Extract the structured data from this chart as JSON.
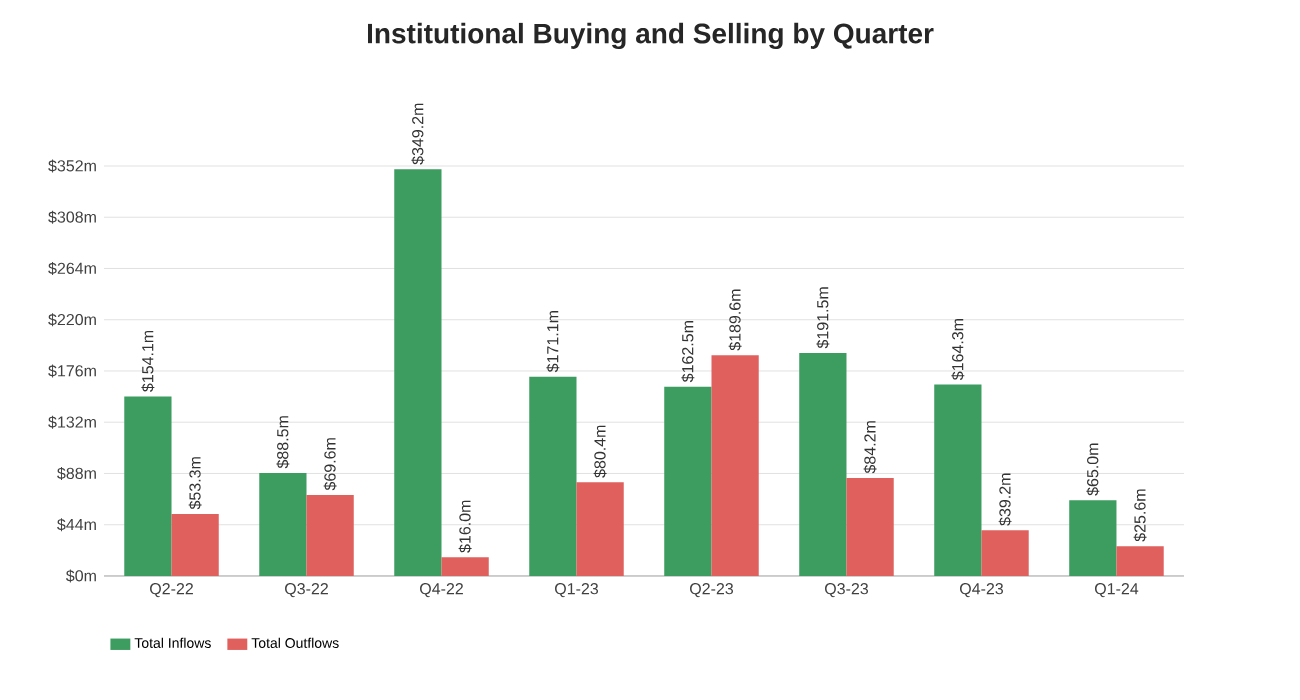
{
  "chart_data": {
    "type": "bar",
    "title": "Institutional Buying and Selling by Quarter",
    "categories": [
      "Q2-22",
      "Q3-22",
      "Q4-22",
      "Q1-23",
      "Q2-23",
      "Q3-23",
      "Q4-23",
      "Q1-24"
    ],
    "series": [
      {
        "name": "Total Inflows",
        "color": "#3d9c5f",
        "values": [
          154.1,
          88.5,
          349.2,
          171.1,
          162.5,
          191.5,
          164.3,
          65.0
        ],
        "value_labels": [
          "$154.1m",
          "$88.5m",
          "$349.2m",
          "$171.1m",
          "$162.5m",
          "$191.5m",
          "$164.3m",
          "$65.0m"
        ]
      },
      {
        "name": "Total Outflows",
        "color": "#e0605e",
        "values": [
          53.3,
          69.6,
          16.0,
          80.4,
          189.6,
          84.2,
          39.2,
          25.6
        ],
        "value_labels": [
          "$53.3m",
          "$69.6m",
          "$16.0m",
          "$80.4m",
          "$189.6m",
          "$84.2m",
          "$39.2m",
          "$25.6m"
        ]
      }
    ],
    "ylim": [
      0,
      352
    ],
    "yticks": [
      {
        "value": 0,
        "label": "$0m"
      },
      {
        "value": 44,
        "label": "$44m"
      },
      {
        "value": 88,
        "label": "$88m"
      },
      {
        "value": 132,
        "label": "$132m"
      },
      {
        "value": 176,
        "label": "$176m"
      },
      {
        "value": 220,
        "label": "$220m"
      },
      {
        "value": 264,
        "label": "$264m"
      },
      {
        "value": 308,
        "label": "$308m"
      },
      {
        "value": 352,
        "label": "$352m"
      }
    ],
    "grid": "y",
    "legend": "bottom left"
  }
}
